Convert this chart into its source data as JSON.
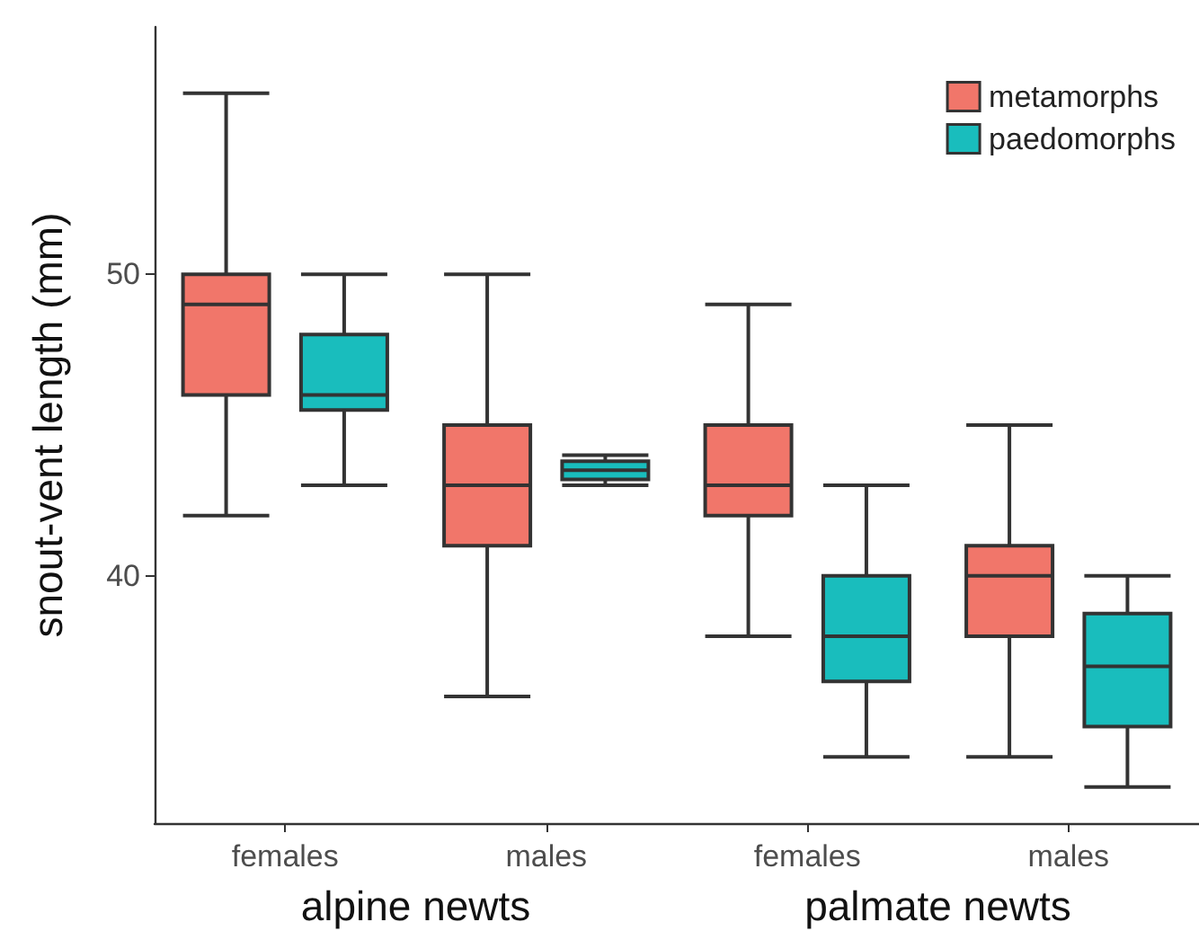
{
  "chart_data": {
    "type": "box",
    "ylabel": "snout-vent length (mm)",
    "categories": [
      "females",
      "males",
      "females",
      "males"
    ],
    "annotations": [
      "alpine newts",
      "palmate newts"
    ],
    "ylim": [
      31.8,
      58.2
    ],
    "yticks": [
      40,
      50
    ],
    "grid": false,
    "legend": "top right",
    "series": [
      {
        "name": "metamorphs",
        "color": "#f1766a",
        "boxes": [
          {
            "low": 42,
            "q1": 46,
            "median": 49,
            "q3": 50,
            "high": 56
          },
          {
            "low": 36,
            "q1": 41,
            "median": 43,
            "q3": 45,
            "high": 50
          },
          {
            "low": 38,
            "q1": 42,
            "median": 43,
            "q3": 45,
            "high": 49
          },
          {
            "low": 34,
            "q1": 38,
            "median": 40,
            "q3": 41,
            "high": 45
          }
        ]
      },
      {
        "name": "paedomorphs",
        "color": "#19bdbd",
        "boxes": [
          {
            "low": 43,
            "q1": 45.5,
            "median": 46,
            "q3": 48,
            "high": 50
          },
          {
            "low": 43,
            "q1": 43.2,
            "median": 43.5,
            "q3": 43.8,
            "high": 44
          },
          {
            "low": 34,
            "q1": 36.5,
            "median": 38,
            "q3": 40,
            "high": 43
          },
          {
            "low": 33,
            "q1": 35,
            "median": 37,
            "q3": 38.75,
            "high": 40
          }
        ]
      }
    ]
  }
}
